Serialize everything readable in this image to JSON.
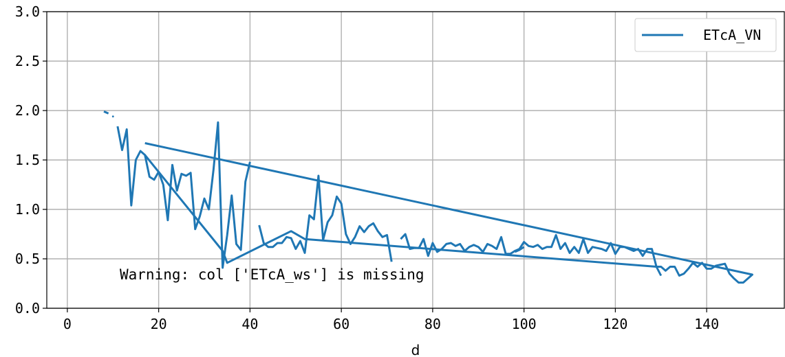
{
  "chart_data": {
    "type": "line",
    "xlabel": "d",
    "ylabel": "",
    "xlim": [
      -4.5,
      157
    ],
    "ylim": [
      0,
      3.0
    ],
    "xticks": [
      0,
      20,
      40,
      60,
      80,
      100,
      120,
      140
    ],
    "xtick_labels": [
      "0",
      "20",
      "40",
      "60",
      "80",
      "100",
      "120",
      "140"
    ],
    "yticks": [
      0.0,
      0.5,
      1.0,
      1.5,
      2.0,
      2.5,
      3.0
    ],
    "ytick_labels": [
      "0.0",
      "0.5",
      "1.0",
      "1.5",
      "2.0",
      "2.5",
      "3.0"
    ],
    "grid": true,
    "legend_position": "top-right",
    "colors": {
      "series": "#1f77b4",
      "grid": "#b0b0b0",
      "axes": "#000000"
    },
    "annotation": "Warning: col ['ETcA_ws'] is missing",
    "series": [
      {
        "name": "ETcA_VN",
        "segments": [
          [
            [
              8,
              1.99
            ],
            [
              9,
              1.97
            ]
          ],
          [
            [
              10,
              1.94
            ]
          ],
          [
            [
              11,
              1.84
            ],
            [
              12,
              1.6
            ],
            [
              13,
              1.81
            ],
            [
              14,
              1.04
            ],
            [
              15,
              1.5
            ],
            [
              16,
              1.59
            ],
            [
              17,
              1.55
            ],
            [
              18,
              1.33
            ],
            [
              19,
              1.3
            ],
            [
              20,
              1.38
            ],
            [
              21,
              1.25
            ],
            [
              22,
              0.89
            ],
            [
              23,
              1.45
            ],
            [
              24,
              1.19
            ],
            [
              25,
              1.36
            ],
            [
              26,
              1.34
            ],
            [
              27,
              1.37
            ],
            [
              28,
              0.8
            ],
            [
              29,
              0.93
            ],
            [
              30,
              1.11
            ],
            [
              31,
              1.0
            ],
            [
              32,
              1.4
            ],
            [
              33,
              1.88
            ],
            [
              34,
              0.41
            ],
            [
              35,
              0.74
            ],
            [
              36,
              1.14
            ],
            [
              37,
              0.65
            ],
            [
              38,
              0.59
            ],
            [
              39,
              1.28
            ],
            [
              40,
              1.48
            ]
          ],
          [
            [
              17,
              1.67
            ],
            [
              150,
              0.34
            ],
            [
              148,
              0.26
            ],
            [
              147,
              0.26
            ],
            [
              146,
              0.3
            ],
            [
              145,
              0.35
            ],
            [
              144,
              0.45
            ],
            [
              143,
              0.44
            ],
            [
              142,
              0.43
            ],
            [
              141,
              0.4
            ],
            [
              140,
              0.4
            ],
            [
              139,
              0.46
            ],
            [
              138,
              0.42
            ],
            [
              137,
              0.46
            ],
            [
              136,
              0.4
            ],
            [
              135,
              0.35
            ],
            [
              134,
              0.33
            ],
            [
              133,
              0.42
            ],
            [
              132,
              0.42
            ],
            [
              131,
              0.38
            ],
            [
              130,
              0.42
            ],
            [
              129,
              0.42
            ],
            [
              128,
              0.6
            ],
            [
              127,
              0.6
            ],
            [
              126,
              0.53
            ],
            [
              125,
              0.6
            ],
            [
              124,
              0.58
            ],
            [
              123,
              0.6
            ],
            [
              122,
              0.62
            ],
            [
              121,
              0.62
            ],
            [
              120,
              0.55
            ],
            [
              119,
              0.66
            ],
            [
              118,
              0.58
            ],
            [
              117,
              0.6
            ],
            [
              116,
              0.61
            ],
            [
              115,
              0.62
            ],
            [
              114,
              0.56
            ],
            [
              113,
              0.7
            ],
            [
              112,
              0.56
            ],
            [
              111,
              0.62
            ],
            [
              110,
              0.56
            ],
            [
              109,
              0.66
            ],
            [
              108,
              0.6
            ],
            [
              107,
              0.74
            ],
            [
              106,
              0.62
            ],
            [
              105,
              0.62
            ],
            [
              104,
              0.6
            ],
            [
              103,
              0.64
            ],
            [
              102,
              0.62
            ],
            [
              101,
              0.63
            ],
            [
              100,
              0.67
            ],
            [
              99,
              0.6
            ],
            [
              98,
              0.58
            ],
            [
              97,
              0.55
            ],
            [
              96,
              0.55
            ],
            [
              95,
              0.72
            ],
            [
              94,
              0.6
            ],
            [
              93,
              0.63
            ],
            [
              92,
              0.65
            ],
            [
              91,
              0.57
            ],
            [
              90,
              0.62
            ],
            [
              89,
              0.64
            ],
            [
              88,
              0.62
            ],
            [
              87,
              0.58
            ],
            [
              86,
              0.65
            ],
            [
              85,
              0.63
            ],
            [
              84,
              0.66
            ],
            [
              83,
              0.65
            ],
            [
              82,
              0.6
            ],
            [
              81,
              0.57
            ],
            [
              80,
              0.66
            ],
            [
              79,
              0.53
            ],
            [
              78,
              0.7
            ],
            [
              77,
              0.61
            ],
            [
              76,
              0.61
            ],
            [
              75,
              0.6
            ],
            [
              74,
              0.75
            ],
            [
              73,
              0.7
            ]
          ],
          [
            [
              42,
              0.84
            ],
            [
              43,
              0.66
            ],
            [
              44,
              0.62
            ],
            [
              45,
              0.62
            ],
            [
              46,
              0.66
            ],
            [
              47,
              0.66
            ],
            [
              48,
              0.72
            ],
            [
              49,
              0.71
            ],
            [
              50,
              0.6
            ],
            [
              51,
              0.68
            ],
            [
              52,
              0.56
            ],
            [
              53,
              0.94
            ],
            [
              54,
              0.9
            ],
            [
              55,
              1.34
            ],
            [
              56,
              0.69
            ],
            [
              57,
              0.87
            ],
            [
              58,
              0.94
            ],
            [
              59,
              1.13
            ],
            [
              60,
              1.06
            ],
            [
              61,
              0.75
            ],
            [
              62,
              0.65
            ],
            [
              63,
              0.72
            ],
            [
              64,
              0.83
            ],
            [
              65,
              0.77
            ],
            [
              66,
              0.83
            ],
            [
              67,
              0.86
            ],
            [
              68,
              0.78
            ],
            [
              69,
              0.72
            ],
            [
              70,
              0.74
            ],
            [
              71,
              0.47
            ]
          ],
          [
            [
              17,
              1.55
            ],
            [
              34,
              0.58
            ],
            [
              35,
              0.46
            ],
            [
              49,
              0.78
            ],
            [
              52,
              0.7
            ],
            [
              129,
              0.42
            ],
            [
              130,
              0.33
            ]
          ],
          [
            [
              98,
              0.57
            ],
            [
              99,
              0.59
            ],
            [
              100,
              0.62
            ]
          ]
        ]
      }
    ]
  }
}
